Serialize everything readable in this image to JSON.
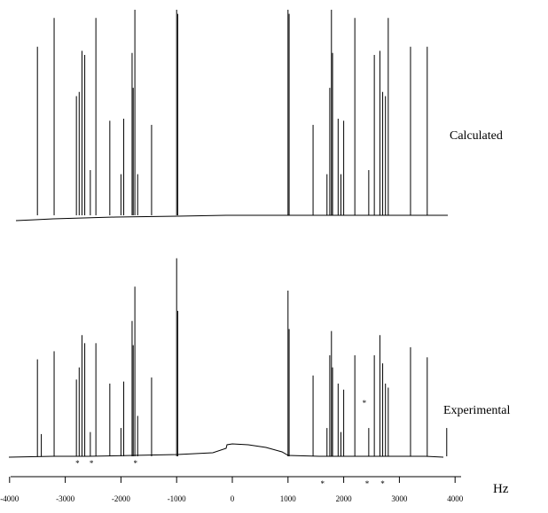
{
  "chart_data": {
    "type": "line",
    "title": "",
    "xlabel": "Hz",
    "ylabel": "",
    "xlim": [
      -4000,
      4000
    ],
    "xticks": [
      -4000,
      -3000,
      -2000,
      -1000,
      0,
      1000,
      2000,
      3000,
      4000
    ],
    "xtick_labels": [
      "-4000",
      "-3000",
      "-2000",
      "-1000",
      "0",
      "1000",
      "2000",
      "3000",
      "4000"
    ],
    "series": [
      {
        "name": "Calculated",
        "peaks_hz": [
          -3500,
          -3200,
          -2800,
          -2750,
          -2700,
          -2650,
          -2550,
          -2450,
          -2200,
          -2000,
          -1950,
          -1800,
          -1780,
          -1750,
          -1700,
          -1450,
          -1000,
          -980,
          1000,
          1020,
          1450,
          1700,
          1750,
          1780,
          1800,
          1900,
          1950,
          2000,
          2200,
          2450,
          2550,
          2650,
          2700,
          2750,
          2800,
          3200,
          3500
        ],
        "heights": [
          0.82,
          0.96,
          0.58,
          0.6,
          0.8,
          0.78,
          0.22,
          0.96,
          0.46,
          0.2,
          0.47,
          0.79,
          0.62,
          1.0,
          0.2,
          0.44,
          1.0,
          0.98,
          1.0,
          0.98,
          0.44,
          0.2,
          0.62,
          1.0,
          0.79,
          0.47,
          0.2,
          0.46,
          0.96,
          0.22,
          0.78,
          0.8,
          0.6,
          0.58,
          0.96,
          0.82,
          0.82
        ]
      },
      {
        "name": "Experimental",
        "peaks_hz": [
          -3500,
          -3430,
          -3200,
          -2800,
          -2750,
          -2700,
          -2650,
          -2550,
          -2450,
          -2200,
          -2000,
          -1950,
          -1800,
          -1780,
          -1750,
          -1700,
          -1450,
          -1000,
          -980,
          1000,
          1020,
          1450,
          1700,
          1750,
          1780,
          1800,
          1900,
          1950,
          2000,
          2200,
          2450,
          2550,
          2650,
          2700,
          2750,
          2800,
          3200,
          3500,
          3850
        ],
        "heights": [
          0.48,
          0.11,
          0.52,
          0.38,
          0.44,
          0.6,
          0.56,
          0.12,
          0.56,
          0.36,
          0.14,
          0.37,
          0.67,
          0.55,
          0.84,
          0.2,
          0.39,
          0.98,
          0.72,
          0.82,
          0.63,
          0.4,
          0.14,
          0.5,
          0.62,
          0.44,
          0.36,
          0.12,
          0.33,
          0.5,
          0.14,
          0.5,
          0.6,
          0.46,
          0.36,
          0.34,
          0.54,
          0.49,
          0.14
        ]
      }
    ],
    "annotations": [
      "*",
      "*",
      "*",
      "*",
      "*",
      "*",
      "*"
    ]
  }
}
